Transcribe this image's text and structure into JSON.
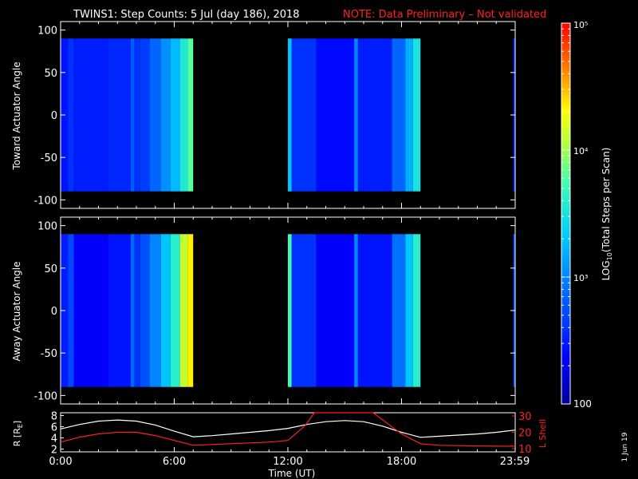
{
  "header": {
    "title": "TWINS1: Step Counts:  5 Jul (day 186), 2018",
    "note": "NOTE: Data Preliminary – Not validated"
  },
  "colorbar": {
    "label_main": "LOG",
    "label_sub": "10",
    "label_rest": "(Total Steps per Scan)",
    "ticks": [
      "10⁵",
      "10⁴",
      "10³",
      "100"
    ],
    "scale": "log",
    "range": [
      100,
      100000
    ]
  },
  "side_note": "1 Jun 19",
  "chart_data": [
    {
      "type": "heatmap",
      "name": "toward",
      "ylabel": "Toward Actuator Angle",
      "ylim": [
        -110,
        110
      ],
      "yticks": [
        "100",
        "50",
        "0",
        "-50",
        "-100"
      ],
      "xlim": [
        0,
        24
      ],
      "data_y_range": [
        -90,
        90
      ],
      "coverage_hours": [
        [
          0.0,
          7.0
        ],
        [
          12.0,
          19.0
        ],
        [
          23.9,
          24.0
        ]
      ],
      "columns": [
        {
          "t0": 0.0,
          "t1": 0.4,
          "level": 2.45
        },
        {
          "t0": 0.4,
          "t1": 0.7,
          "level": 2.6
        },
        {
          "t0": 0.7,
          "t1": 2.5,
          "level": 2.5
        },
        {
          "t0": 2.5,
          "t1": 3.7,
          "level": 2.55
        },
        {
          "t0": 3.7,
          "t1": 3.9,
          "level": 2.8
        },
        {
          "t0": 3.9,
          "t1": 4.2,
          "level": 2.6
        },
        {
          "t0": 4.2,
          "t1": 4.7,
          "level": 2.65
        },
        {
          "t0": 4.7,
          "t1": 5.3,
          "level": 2.85
        },
        {
          "t0": 5.3,
          "t1": 5.8,
          "level": 3.05
        },
        {
          "t0": 5.8,
          "t1": 6.3,
          "level": 3.25
        },
        {
          "t0": 6.3,
          "t1": 6.7,
          "level": 3.55
        },
        {
          "t0": 6.7,
          "t1": 7.0,
          "level": 3.8
        },
        {
          "t0": 12.0,
          "t1": 12.2,
          "level": 3.3
        },
        {
          "t0": 12.2,
          "t1": 13.5,
          "level": 2.6
        },
        {
          "t0": 13.5,
          "t1": 15.5,
          "level": 2.4
        },
        {
          "t0": 15.5,
          "t1": 15.7,
          "level": 3.0
        },
        {
          "t0": 15.7,
          "t1": 17.5,
          "level": 2.5
        },
        {
          "t0": 17.5,
          "t1": 18.2,
          "level": 2.85
        },
        {
          "t0": 18.2,
          "t1": 18.6,
          "level": 3.2
        },
        {
          "t0": 18.6,
          "t1": 19.0,
          "level": 3.5
        },
        {
          "t0": 23.9,
          "t1": 24.0,
          "level": 2.5
        }
      ]
    },
    {
      "type": "heatmap",
      "name": "away",
      "ylabel": "Away Actuator Angle",
      "ylim": [
        -110,
        110
      ],
      "yticks": [
        "100",
        "50",
        "0",
        "-50",
        "-100"
      ],
      "xlim": [
        0,
        24
      ],
      "data_y_range": [
        -90,
        90
      ],
      "coverage_hours": [
        [
          0.0,
          7.0
        ],
        [
          12.0,
          19.0
        ],
        [
          23.9,
          24.0
        ]
      ],
      "columns": [
        {
          "t0": 0.0,
          "t1": 0.4,
          "level": 2.5
        },
        {
          "t0": 0.4,
          "t1": 0.7,
          "level": 2.7
        },
        {
          "t0": 0.7,
          "t1": 2.5,
          "level": 2.35
        },
        {
          "t0": 2.5,
          "t1": 3.7,
          "level": 2.45
        },
        {
          "t0": 3.7,
          "t1": 3.9,
          "level": 2.85
        },
        {
          "t0": 3.9,
          "t1": 4.2,
          "level": 2.6
        },
        {
          "t0": 4.2,
          "t1": 4.7,
          "level": 2.75
        },
        {
          "t0": 4.7,
          "t1": 5.3,
          "level": 3.0
        },
        {
          "t0": 5.3,
          "t1": 5.8,
          "level": 3.3
        },
        {
          "t0": 5.8,
          "t1": 6.3,
          "level": 3.6
        },
        {
          "t0": 6.3,
          "t1": 6.7,
          "level": 4.1
        },
        {
          "t0": 6.7,
          "t1": 7.0,
          "level": 4.35
        },
        {
          "t0": 12.0,
          "t1": 12.2,
          "level": 3.7
        },
        {
          "t0": 12.2,
          "t1": 13.5,
          "level": 2.6
        },
        {
          "t0": 13.5,
          "t1": 15.5,
          "level": 2.35
        },
        {
          "t0": 15.5,
          "t1": 15.7,
          "level": 3.0
        },
        {
          "t0": 15.7,
          "t1": 17.5,
          "level": 2.45
        },
        {
          "t0": 17.5,
          "t1": 18.2,
          "level": 2.9
        },
        {
          "t0": 18.2,
          "t1": 18.6,
          "level": 3.3
        },
        {
          "t0": 18.6,
          "t1": 19.0,
          "level": 3.6
        },
        {
          "t0": 23.9,
          "t1": 24.0,
          "level": 2.7
        }
      ]
    },
    {
      "type": "line",
      "name": "orbit",
      "ylabel_left": "R [R",
      "ylabel_left_sub": "E",
      "ylabel_left_end": "]",
      "ylabel_right": "L Shell",
      "ylim_left": [
        1.5,
        8.5
      ],
      "yticks_left": [
        "8",
        "6",
        "4",
        "2"
      ],
      "ylim_right": [
        8,
        32
      ],
      "yticks_right": [
        "30",
        "20",
        "10"
      ],
      "xlim": [
        0,
        24
      ],
      "xticks": [
        "0:00",
        "6:00",
        "12:00",
        "18:00",
        "23:59"
      ],
      "xlabel": "Time (UT)",
      "series": [
        {
          "axis": "left",
          "color": "#ffffff",
          "x": [
            0,
            1,
            2,
            3,
            4,
            5,
            6,
            7,
            8,
            9,
            10,
            11,
            12,
            13,
            14,
            15,
            16,
            17,
            18,
            19,
            20,
            21,
            22,
            23,
            24
          ],
          "y": [
            5.6,
            6.4,
            7.0,
            7.2,
            7.0,
            6.3,
            5.2,
            4.2,
            4.4,
            4.7,
            5.0,
            5.3,
            5.7,
            6.4,
            6.9,
            7.1,
            6.9,
            6.1,
            5.0,
            4.1,
            4.3,
            4.5,
            4.7,
            5.0,
            5.4
          ]
        },
        {
          "axis": "right",
          "color": "#ff2020",
          "x": [
            0,
            1,
            2,
            3,
            4,
            5,
            6,
            7,
            8,
            9,
            10,
            11,
            12,
            12.9,
            13.4,
            16.5,
            17.3,
            18.0,
            19.0,
            20,
            21,
            22,
            23,
            24
          ],
          "y": [
            14,
            17,
            19,
            20,
            20,
            18,
            15,
            12,
            12.5,
            13,
            13.5,
            14,
            15,
            24,
            32,
            32,
            25,
            19,
            13,
            12,
            11.8,
            11.6,
            11.5,
            11.5
          ]
        }
      ]
    }
  ]
}
